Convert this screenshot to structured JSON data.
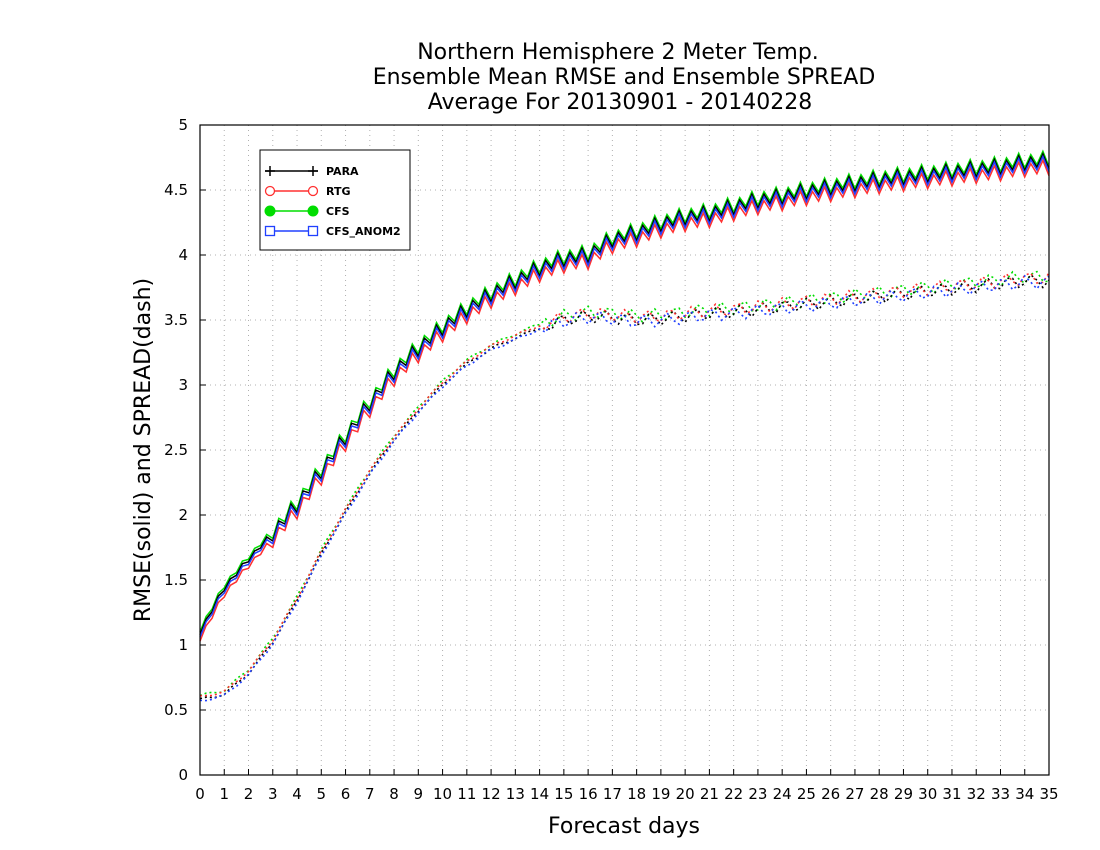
{
  "chart_data": {
    "type": "line",
    "title_lines": [
      "Northern Hemisphere 2 Meter Temp.",
      "Ensemble Mean RMSE and Ensemble SPREAD",
      "Average For 20130901 - 20140228"
    ],
    "xlabel": "Forecast days",
    "ylabel": "RMSE(solid) and SPREAD(dash)",
    "xlim": [
      0,
      35
    ],
    "ylim": [
      0,
      5
    ],
    "x_ticks": [
      "0",
      "1",
      "2",
      "3",
      "4",
      "5",
      "6",
      "7",
      "8",
      "9",
      "10",
      "11",
      "12",
      "13",
      "14",
      "15",
      "16",
      "17",
      "18",
      "19",
      "20",
      "21",
      "22",
      "23",
      "24",
      "25",
      "26",
      "27",
      "28",
      "29",
      "30",
      "31",
      "32",
      "33",
      "34",
      "35"
    ],
    "y_ticks": [
      "0",
      "0.5",
      "1",
      "1.5",
      "2",
      "2.5",
      "3",
      "3.5",
      "4",
      "4.5",
      "5"
    ],
    "grid": true,
    "legend_position": "top-left",
    "x_step": 0.25,
    "series": [
      {
        "name": "PARA",
        "color": "#000000",
        "marker": "plus"
      },
      {
        "name": "RTG",
        "color": "#ff3030",
        "marker": "open-circle"
      },
      {
        "name": "CFS",
        "color": "#00dd00",
        "marker": "filled-circle"
      },
      {
        "name": "CFS_ANOM2",
        "color": "#2040ff",
        "marker": "open-square"
      }
    ],
    "rmse_day_values": [
      1.08,
      1.42,
      1.64,
      1.84,
      2.06,
      2.32,
      2.58,
      2.84,
      3.08,
      3.26,
      3.42,
      3.56,
      3.68,
      3.78,
      3.88,
      3.95,
      3.98,
      4.1,
      4.15,
      4.22,
      4.27,
      4.3,
      4.35,
      4.4,
      4.43,
      4.47,
      4.5,
      4.53,
      4.56,
      4.58,
      4.6,
      4.62,
      4.64,
      4.66,
      4.69,
      4.7
    ],
    "rmse_offsets": {
      "PARA": 0.02,
      "RTG": -0.03,
      "CFS": 0.04,
      "CFS_ANOM2": 0.0
    },
    "spread_day_values": [
      0.58,
      0.62,
      0.78,
      1.02,
      1.34,
      1.7,
      2.02,
      2.32,
      2.58,
      2.8,
      3.0,
      3.16,
      3.28,
      3.36,
      3.44,
      3.5,
      3.53,
      3.52,
      3.5,
      3.51,
      3.53,
      3.55,
      3.56,
      3.58,
      3.6,
      3.62,
      3.64,
      3.66,
      3.68,
      3.7,
      3.72,
      3.74,
      3.76,
      3.78,
      3.8,
      3.8
    ],
    "spread_offsets": {
      "PARA": 0.0,
      "RTG": 0.02,
      "CFS": 0.03,
      "CFS_ANOM2": -0.01
    }
  }
}
